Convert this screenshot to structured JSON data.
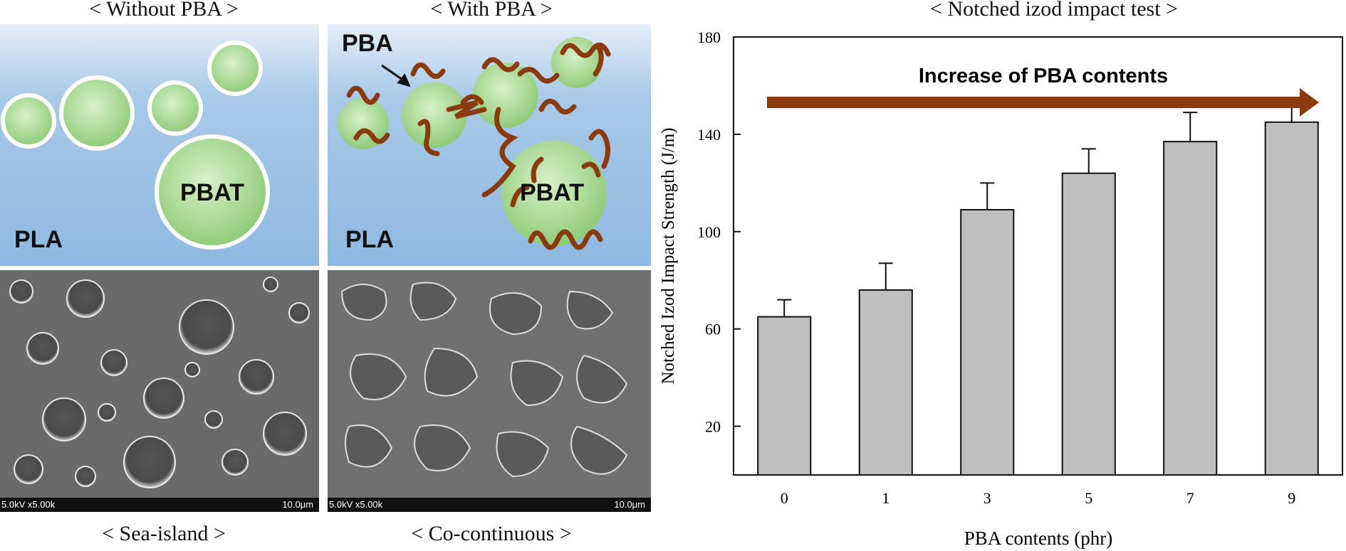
{
  "left_figure": {
    "without_caption": "< Without PBA >",
    "with_caption": "< With PBA >",
    "sea_island_caption": "< Sea-island >",
    "co_continuous_caption": "< Co-continuous >",
    "pla_label": "PLA",
    "pbat_label": "PBAT",
    "pba_label": "PBA",
    "sem_left_info": "5.0kV x5.00k",
    "sem_right_info": "5.0kV x5.00k",
    "sem_scale": "10.0μm",
    "colors": {
      "pla_bg": "#8fb9e2",
      "pbat_droplet": "#a8d890",
      "pba_chain": "#8b3a0e"
    }
  },
  "chart_data": {
    "type": "bar",
    "title": "< Notched izod impact test >",
    "xlabel": "PBA contents (phr)",
    "ylabel": "Notched Izod Impact Strength (J/m)",
    "categories": [
      "0",
      "1",
      "3",
      "5",
      "7",
      "9"
    ],
    "values": [
      65,
      76,
      109,
      124,
      137,
      145
    ],
    "errors": [
      7,
      11,
      11,
      10,
      12,
      7
    ],
    "ylim": [
      0,
      180
    ],
    "yticks": [
      20,
      60,
      100,
      140,
      180
    ],
    "annotation": "Increase of PBA contents",
    "colors": {
      "bar": "#bfbfbf",
      "arrow": "#8b3a0e"
    },
    "grid": false
  }
}
